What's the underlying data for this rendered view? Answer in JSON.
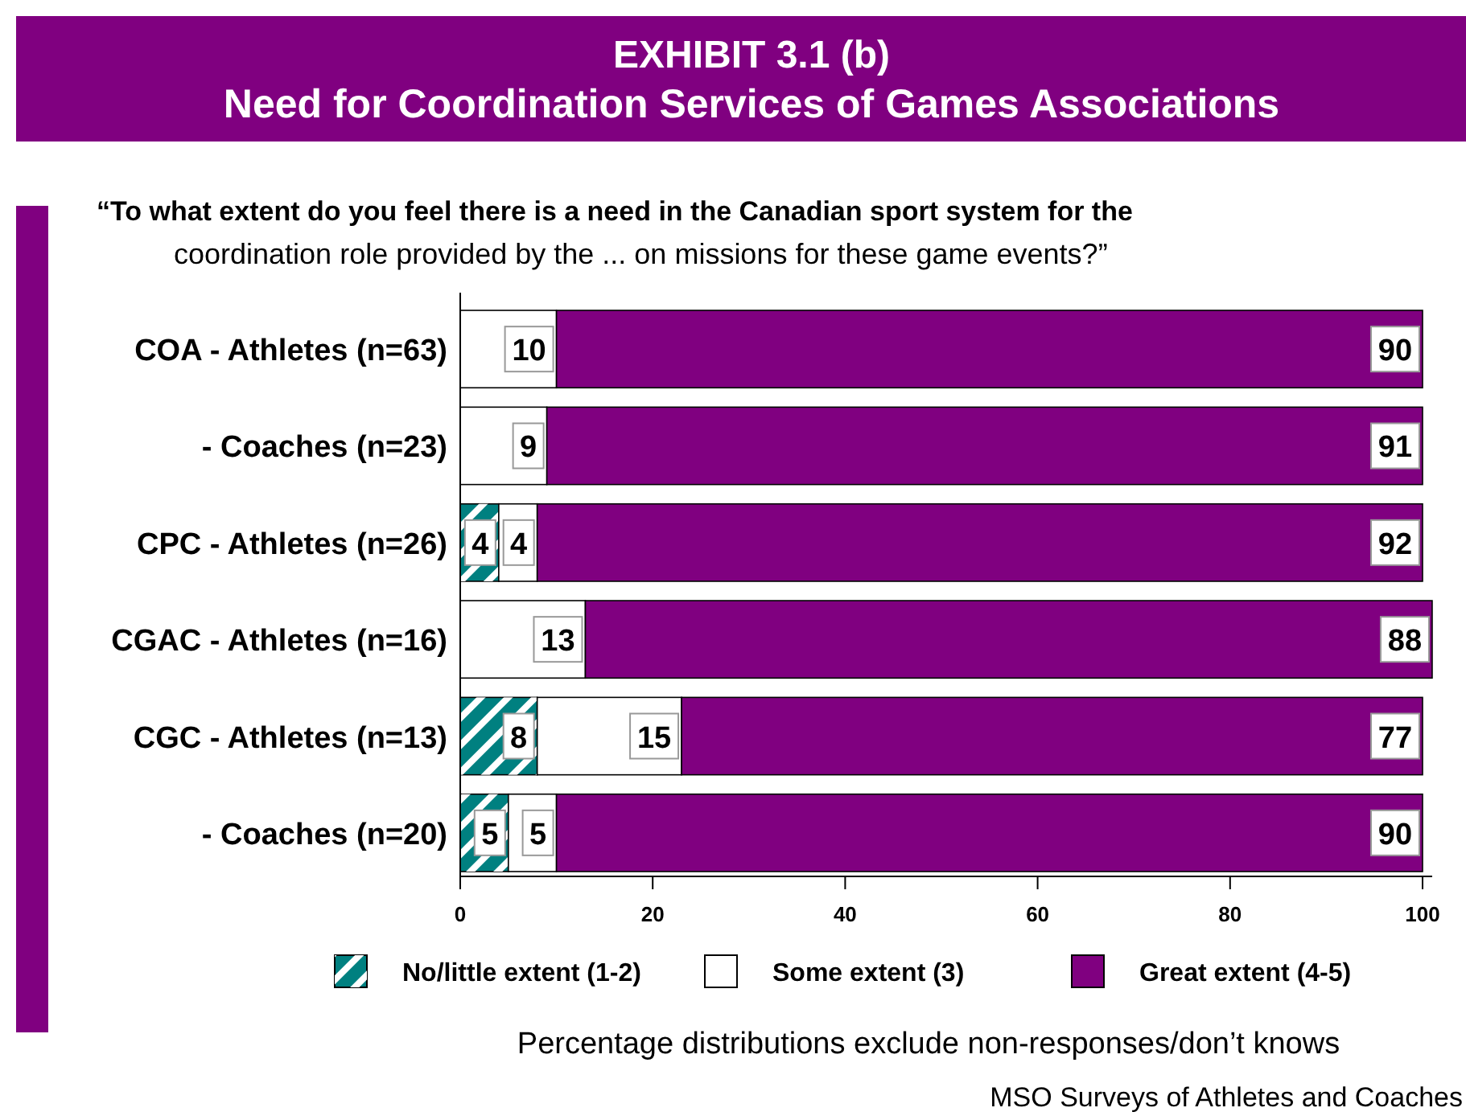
{
  "chart_data": {
    "type": "bar",
    "orientation": "horizontal",
    "stacked": true,
    "title": "EXHIBIT 3.1 (b)\nNeed for Coordination Services of Games Associations",
    "subtitle": "“To what extent do you feel there is a need in the Canadian sport system for the\ncoordination role provided by the ... on missions for these game events?”",
    "categories": [
      "COA - Athletes (n=63)",
      "- Coaches (n=23)",
      "CPC - Athletes (n=26)",
      "CGAC - Athletes (n=16)",
      "CGC - Athletes (n=13)",
      "- Coaches (n=20)"
    ],
    "series": [
      {
        "name": "No/little extent (1-2)",
        "color": "#008080",
        "values": [
          0,
          0,
          4,
          0,
          8,
          5
        ],
        "value_labels": [
          null,
          null,
          "4",
          null,
          "8",
          "5"
        ]
      },
      {
        "name": "Some extent (3)",
        "color": "#ffffff",
        "values": [
          10,
          9,
          4,
          13,
          15,
          5
        ],
        "value_labels": [
          "10",
          "9",
          "4",
          "13",
          "15",
          "5"
        ]
      },
      {
        "name": "Great extent (4-5)",
        "color": "#800080",
        "values": [
          90,
          91,
          92,
          88,
          77,
          90
        ],
        "value_labels": [
          "90",
          "91",
          "92",
          "88",
          "77",
          "90"
        ]
      }
    ],
    "xlim": [
      0,
      101
    ],
    "xticks": [
      0,
      20,
      40,
      60,
      80,
      100
    ],
    "grid": false,
    "legend": "bottom",
    "annotations": [
      "Percentage distributions exclude non-responses/don’t knows",
      "MSO Surveys of Athletes and Coaches"
    ]
  }
}
